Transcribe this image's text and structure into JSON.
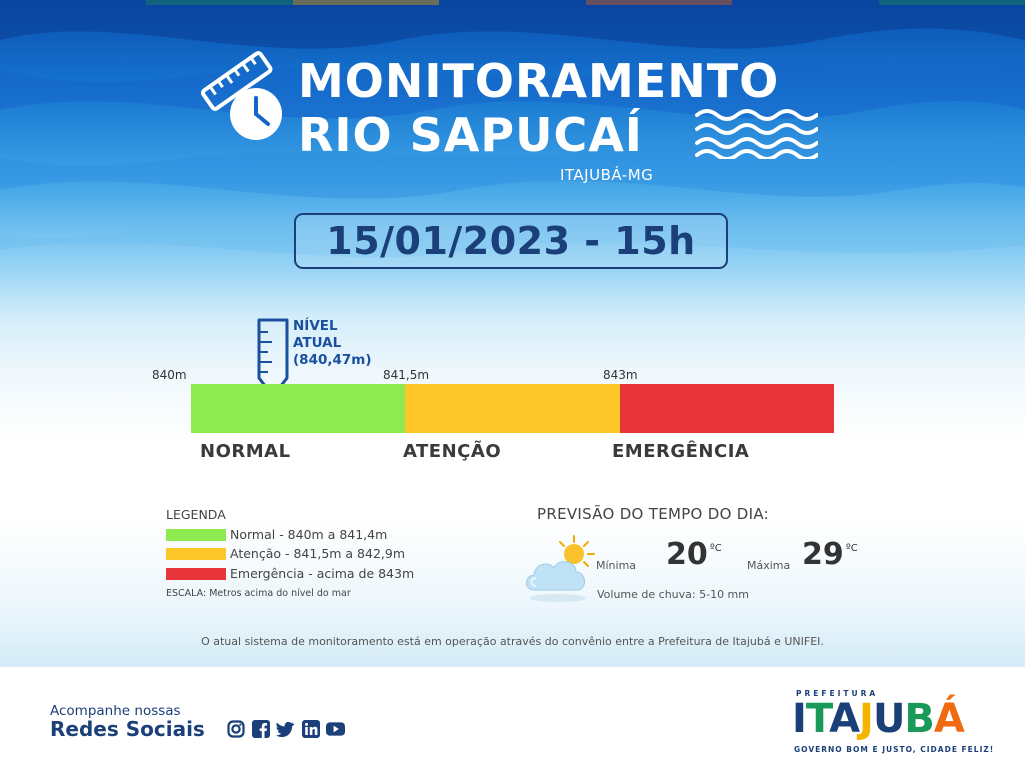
{
  "header": {
    "title_line1": "MONITORAMENTO",
    "title_line2": "RIO SAPUCAÍ",
    "subtitle": "ITAJUBÁ-MG",
    "datetime": "15/01/2023 - 15h"
  },
  "colors": {
    "top_stripes": [
      "#0a4fb0",
      "#1a9a58",
      "#f4b400",
      "#0a4fb0",
      "#f06a10",
      "#0a4fb0",
      "#1a9a58"
    ],
    "normal": "#8eea4e",
    "attention": "#fdc72a",
    "emergency": "#e8353a",
    "brand_blue": "#1b3f78"
  },
  "current_level": {
    "label_line1": "NÍVEL",
    "label_line2": "ATUAL",
    "label_line3": "(840,47m)",
    "value_m": 840.47
  },
  "scale": {
    "marks": [
      "840m",
      "841,5m",
      "843m"
    ],
    "levels": [
      {
        "name": "NORMAL",
        "color": "#8eea4e"
      },
      {
        "name": "ATENÇÃO",
        "color": "#fdc72a"
      },
      {
        "name": "EMERGÊNCIA",
        "color": "#e8353a"
      }
    ]
  },
  "legend": {
    "title": "LEGENDA",
    "items": [
      {
        "text": "Normal - 840m a 841,4m",
        "color": "#8eea4e"
      },
      {
        "text": "Atenção - 841,5m a 842,9m",
        "color": "#fdc72a"
      },
      {
        "text": "Emergência - acima de 843m",
        "color": "#e8353a"
      }
    ],
    "scale_note": "ESCALA: Metros acima do nível do mar"
  },
  "forecast": {
    "title": "PREVISÃO DO TEMPO DO DIA:",
    "min_label": "Mínima",
    "min_value": "20",
    "max_label": "Máxima",
    "max_value": "29",
    "unit": "ºC",
    "rain": "Volume de chuva: 5-10 mm",
    "icon": "partly-cloudy-icon"
  },
  "footnote": "O atual sistema de monitoramento está em operação através do convênio entre a Prefeitura de Itajubá e UNIFEI.",
  "footer": {
    "follow": "Acompanhe nossas",
    "social": "Redes Sociais",
    "social_icons": [
      "instagram-icon",
      "facebook-icon",
      "twitter-icon",
      "linkedin-icon",
      "youtube-icon"
    ],
    "logo_top": "PREFEITURA",
    "logo_main": "ITAJUBÁ",
    "logo_tagline": "GOVERNO BOM E JUSTO, CIDADE FELIZ!"
  }
}
